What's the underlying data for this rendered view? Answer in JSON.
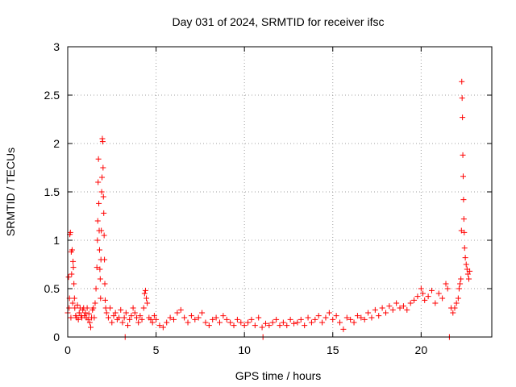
{
  "chart_data": {
    "type": "scatter",
    "title": "Day 031 of 2024, SRMTID for receiver ifsc",
    "xlabel": "GPS time / hours",
    "ylabel": "SRMTID / TECUs",
    "xlim": [
      0,
      24
    ],
    "ylim": [
      0,
      3
    ],
    "xticks": [
      0,
      5,
      10,
      15,
      20
    ],
    "yticks": [
      0,
      0.5,
      1,
      1.5,
      2,
      2.5,
      3
    ],
    "ytick_labels": [
      "0",
      "0.5",
      "1",
      "1.5",
      "2",
      "2.5",
      "3"
    ],
    "grid": true,
    "marker": "plus",
    "color": "#ff0000",
    "series": [
      {
        "name": "SRMTID",
        "points": [
          [
            0.0,
            0.25
          ],
          [
            0.05,
            0.62
          ],
          [
            0.08,
            0.3
          ],
          [
            0.1,
            0.4
          ],
          [
            0.12,
            1.06
          ],
          [
            0.15,
            1.08
          ],
          [
            0.18,
            0.2
          ],
          [
            0.2,
            0.88
          ],
          [
            0.22,
            0.65
          ],
          [
            0.25,
            0.9
          ],
          [
            0.28,
            0.35
          ],
          [
            0.3,
            0.78
          ],
          [
            0.32,
            0.72
          ],
          [
            0.35,
            0.55
          ],
          [
            0.38,
            0.4
          ],
          [
            0.4,
            0.3
          ],
          [
            0.45,
            0.22
          ],
          [
            0.5,
            0.2
          ],
          [
            0.55,
            0.33
          ],
          [
            0.6,
            0.18
          ],
          [
            0.65,
            0.25
          ],
          [
            0.7,
            0.3
          ],
          [
            0.75,
            0.22
          ],
          [
            0.8,
            0.2
          ],
          [
            0.85,
            0.28
          ],
          [
            0.9,
            0.3
          ],
          [
            0.95,
            0.22
          ],
          [
            1.0,
            0.25
          ],
          [
            1.05,
            0.2
          ],
          [
            1.1,
            0.3
          ],
          [
            1.15,
            0.18
          ],
          [
            1.2,
            0.24
          ],
          [
            1.25,
            0.15
          ],
          [
            1.3,
            0.1
          ],
          [
            1.35,
            0.2
          ],
          [
            1.4,
            0.28
          ],
          [
            1.45,
            0.3
          ],
          [
            1.5,
            0.2
          ],
          [
            1.55,
            0.35
          ],
          [
            1.6,
            0.5
          ],
          [
            1.65,
            0.72
          ],
          [
            1.68,
            1.0
          ],
          [
            1.7,
            1.2
          ],
          [
            1.72,
            1.6
          ],
          [
            1.74,
            1.84
          ],
          [
            1.76,
            1.38
          ],
          [
            1.78,
            1.1
          ],
          [
            1.8,
            0.9
          ],
          [
            1.82,
            0.7
          ],
          [
            1.84,
            0.6
          ],
          [
            1.86,
            0.4
          ],
          [
            1.88,
            0.8
          ],
          [
            1.9,
            1.1
          ],
          [
            1.92,
            1.5
          ],
          [
            1.94,
            1.65
          ],
          [
            1.96,
            2.05
          ],
          [
            1.98,
            2.02
          ],
          [
            2.0,
            1.75
          ],
          [
            2.02,
            1.45
          ],
          [
            2.04,
            1.28
          ],
          [
            2.06,
            1.05
          ],
          [
            2.08,
            0.8
          ],
          [
            2.1,
            0.55
          ],
          [
            2.12,
            0.38
          ],
          [
            2.15,
            0.3
          ],
          [
            2.2,
            0.25
          ],
          [
            2.3,
            0.2
          ],
          [
            2.4,
            0.3
          ],
          [
            2.5,
            0.15
          ],
          [
            2.6,
            0.22
          ],
          [
            2.7,
            0.25
          ],
          [
            2.8,
            0.18
          ],
          [
            2.9,
            0.2
          ],
          [
            3.0,
            0.28
          ],
          [
            3.1,
            0.15
          ],
          [
            3.2,
            0.2
          ],
          [
            3.25,
            0.0
          ],
          [
            3.3,
            0.25
          ],
          [
            3.4,
            0.12
          ],
          [
            3.5,
            0.18
          ],
          [
            3.6,
            0.22
          ],
          [
            3.7,
            0.3
          ],
          [
            3.8,
            0.25
          ],
          [
            3.9,
            0.2
          ],
          [
            4.0,
            0.15
          ],
          [
            4.1,
            0.22
          ],
          [
            4.2,
            0.18
          ],
          [
            4.3,
            0.3
          ],
          [
            4.35,
            0.45
          ],
          [
            4.4,
            0.48
          ],
          [
            4.45,
            0.4
          ],
          [
            4.5,
            0.35
          ],
          [
            4.6,
            0.2
          ],
          [
            4.7,
            0.18
          ],
          [
            4.8,
            0.15
          ],
          [
            4.9,
            0.22
          ],
          [
            5.0,
            0.18
          ],
          [
            5.2,
            0.12
          ],
          [
            5.4,
            0.1
          ],
          [
            5.6,
            0.15
          ],
          [
            5.8,
            0.2
          ],
          [
            6.0,
            0.18
          ],
          [
            6.2,
            0.25
          ],
          [
            6.4,
            0.28
          ],
          [
            6.6,
            0.2
          ],
          [
            6.8,
            0.15
          ],
          [
            7.0,
            0.22
          ],
          [
            7.2,
            0.18
          ],
          [
            7.4,
            0.2
          ],
          [
            7.6,
            0.25
          ],
          [
            7.8,
            0.15
          ],
          [
            8.0,
            0.12
          ],
          [
            8.2,
            0.18
          ],
          [
            8.4,
            0.2
          ],
          [
            8.6,
            0.15
          ],
          [
            8.8,
            0.22
          ],
          [
            9.0,
            0.18
          ],
          [
            9.2,
            0.15
          ],
          [
            9.4,
            0.12
          ],
          [
            9.6,
            0.18
          ],
          [
            9.8,
            0.15
          ],
          [
            10.0,
            0.12
          ],
          [
            10.2,
            0.15
          ],
          [
            10.4,
            0.18
          ],
          [
            10.6,
            0.12
          ],
          [
            10.8,
            0.2
          ],
          [
            11.0,
            0.1
          ],
          [
            11.05,
            0.0
          ],
          [
            11.2,
            0.14
          ],
          [
            11.4,
            0.12
          ],
          [
            11.6,
            0.15
          ],
          [
            11.8,
            0.18
          ],
          [
            12.0,
            0.12
          ],
          [
            12.2,
            0.15
          ],
          [
            12.4,
            0.12
          ],
          [
            12.6,
            0.18
          ],
          [
            12.8,
            0.14
          ],
          [
            13.0,
            0.15
          ],
          [
            13.2,
            0.18
          ],
          [
            13.4,
            0.12
          ],
          [
            13.6,
            0.2
          ],
          [
            13.8,
            0.15
          ],
          [
            14.0,
            0.18
          ],
          [
            14.2,
            0.22
          ],
          [
            14.4,
            0.15
          ],
          [
            14.6,
            0.2
          ],
          [
            14.8,
            0.25
          ],
          [
            15.0,
            0.18
          ],
          [
            15.2,
            0.22
          ],
          [
            15.4,
            0.15
          ],
          [
            15.6,
            0.08
          ],
          [
            15.8,
            0.2
          ],
          [
            16.0,
            0.18
          ],
          [
            16.2,
            0.15
          ],
          [
            16.4,
            0.22
          ],
          [
            16.6,
            0.2
          ],
          [
            16.8,
            0.18
          ],
          [
            17.0,
            0.25
          ],
          [
            17.2,
            0.2
          ],
          [
            17.4,
            0.28
          ],
          [
            17.6,
            0.22
          ],
          [
            17.8,
            0.3
          ],
          [
            18.0,
            0.25
          ],
          [
            18.2,
            0.32
          ],
          [
            18.4,
            0.28
          ],
          [
            18.6,
            0.35
          ],
          [
            18.8,
            0.3
          ],
          [
            19.0,
            0.32
          ],
          [
            19.2,
            0.28
          ],
          [
            19.4,
            0.35
          ],
          [
            19.6,
            0.38
          ],
          [
            19.8,
            0.42
          ],
          [
            20.0,
            0.5
          ],
          [
            20.1,
            0.45
          ],
          [
            20.2,
            0.38
          ],
          [
            20.4,
            0.42
          ],
          [
            20.6,
            0.48
          ],
          [
            20.8,
            0.35
          ],
          [
            21.0,
            0.45
          ],
          [
            21.2,
            0.4
          ],
          [
            21.4,
            0.55
          ],
          [
            21.5,
            0.5
          ],
          [
            21.6,
            0.0
          ],
          [
            21.7,
            0.3
          ],
          [
            21.8,
            0.25
          ],
          [
            21.9,
            0.3
          ],
          [
            22.0,
            0.35
          ],
          [
            22.1,
            0.4
          ],
          [
            22.15,
            0.5
          ],
          [
            22.2,
            0.55
          ],
          [
            22.25,
            0.6
          ],
          [
            22.28,
            1.1
          ],
          [
            22.3,
            2.64
          ],
          [
            22.32,
            2.47
          ],
          [
            22.34,
            2.27
          ],
          [
            22.36,
            1.88
          ],
          [
            22.38,
            1.66
          ],
          [
            22.4,
            1.42
          ],
          [
            22.42,
            1.22
          ],
          [
            22.44,
            1.08
          ],
          [
            22.46,
            0.92
          ],
          [
            22.5,
            0.82
          ],
          [
            22.55,
            0.75
          ],
          [
            22.6,
            0.7
          ],
          [
            22.65,
            0.65
          ],
          [
            22.7,
            0.6
          ],
          [
            22.75,
            0.68
          ]
        ]
      }
    ]
  }
}
